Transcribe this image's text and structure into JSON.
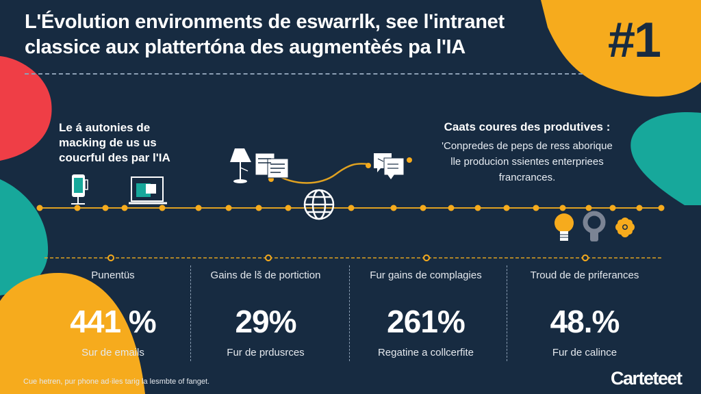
{
  "title": {
    "line1": "L'Évolution environments de eswarrlk, see l'intranet",
    "line2": "classice aux plattertóna des augmentèés pa l'IA"
  },
  "rank_badge": "#1",
  "left_block": {
    "lines": [
      "Le á autonies de",
      "macking de us us",
      "coucrful des par l'IA"
    ]
  },
  "right_block": {
    "heading": "Caats coures des produtives :",
    "lines": [
      "'Conpredes de peps de ress aborique",
      "lle producion ssientes enterpriees",
      "francrances."
    ]
  },
  "stats": [
    {
      "label": "Punentüs",
      "value": "441 %",
      "sub": "Sur de emails"
    },
    {
      "label": "Gains de lš de portiction",
      "value": "29%",
      "sub": "Fur de prdusrces"
    },
    {
      "label": "Fur gains de complagies",
      "value": "261%",
      "sub": "Regatine a collcerfite"
    },
    {
      "label": "Troud de de priferances",
      "value": "48.%",
      "sub": "Fur de calince"
    }
  ],
  "footnote": "Cue hetren, pur phone ad·iles tarig la lesmbte of fanget.",
  "logo": "Carteteet",
  "colors": {
    "background": "#172b41",
    "yellow": "#f6ab1d",
    "teal": "#17a89b",
    "red": "#ef3e46"
  },
  "icons": [
    "smartphone-icon",
    "laptop-icon",
    "lamp-icon",
    "documents-icon",
    "globe-icon",
    "chat-icon",
    "lightbulb-icon",
    "gray-bulb-icon",
    "flower-icon"
  ]
}
